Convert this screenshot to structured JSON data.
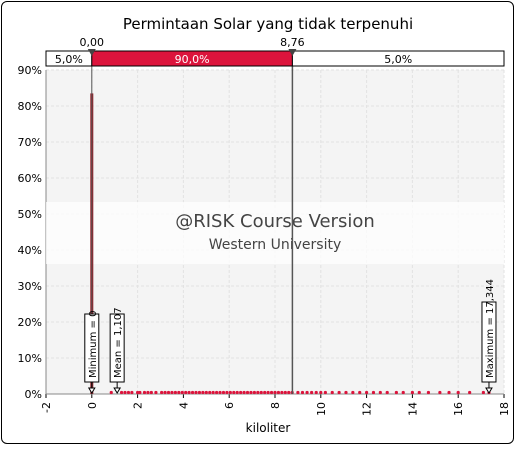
{
  "chart_data": {
    "type": "bar",
    "title": "Permintaan Solar yang tidak terpenuhi",
    "xlabel": "kiloliter",
    "ylabel": "",
    "xlim": [
      -2,
      18
    ],
    "ylim": [
      0,
      0.9
    ],
    "x_ticks": [
      -2,
      0,
      2,
      4,
      6,
      8,
      10,
      12,
      14,
      16,
      18
    ],
    "y_ticks": [
      0,
      0.1,
      0.2,
      0.3,
      0.4,
      0.5,
      0.6,
      0.7,
      0.8,
      0.9
    ],
    "y_tick_labels": [
      "0%",
      "10%",
      "20%",
      "30%",
      "40%",
      "50%",
      "60%",
      "70%",
      "80%",
      "90%"
    ],
    "grid": true,
    "bars": [
      {
        "x": 0,
        "value": 0.835
      }
    ],
    "scatter_points": [
      0.85,
      1.3,
      1.45,
      1.6,
      1.75,
      2.0,
      2.1,
      2.3,
      2.45,
      2.6,
      2.8,
      3.05,
      3.2,
      3.35,
      3.5,
      3.65,
      3.8,
      3.95,
      4.1,
      4.25,
      4.4,
      4.55,
      4.7,
      4.85,
      5.0,
      5.15,
      5.3,
      5.45,
      5.6,
      5.75,
      5.9,
      6.05,
      6.2,
      6.35,
      6.5,
      6.65,
      6.8,
      6.95,
      7.1,
      7.25,
      7.4,
      7.55,
      7.7,
      7.85,
      8.0,
      8.15,
      8.3,
      8.45,
      8.6,
      8.75,
      9.0,
      9.2,
      9.4,
      9.6,
      9.8,
      10.0,
      10.2,
      10.5,
      10.8,
      11.1,
      11.4,
      11.7,
      12.0,
      12.3,
      12.6,
      12.9,
      13.3,
      13.6,
      14.0,
      14.3,
      14.7,
      15.2,
      15.6,
      16.0,
      16.5,
      17.1,
      17.344
    ],
    "delimiters": {
      "left_value": 0,
      "left_label": "0,00",
      "right_value": 8.76,
      "right_label": "8,76",
      "bands": [
        {
          "label": "5,0%",
          "fraction": 0.05
        },
        {
          "label": "90,0%",
          "fraction": 0.9
        },
        {
          "label": "5,0%",
          "fraction": 0.05
        }
      ]
    },
    "markers": [
      {
        "x": 0,
        "label": "Minimum = 0"
      },
      {
        "x": 1.107,
        "label": "Mean = 1,107"
      },
      {
        "x": 17.344,
        "label": "Maximum = 17,344"
      }
    ],
    "watermark": {
      "line1": "@RISK Course Version",
      "line2": "Western University"
    },
    "colors": {
      "bar": "#8b0a14",
      "band_mid": "#dc143c",
      "points": "#dc143c",
      "grid": "#e2e2e2",
      "plot_bg": "#f4f4f4"
    }
  }
}
